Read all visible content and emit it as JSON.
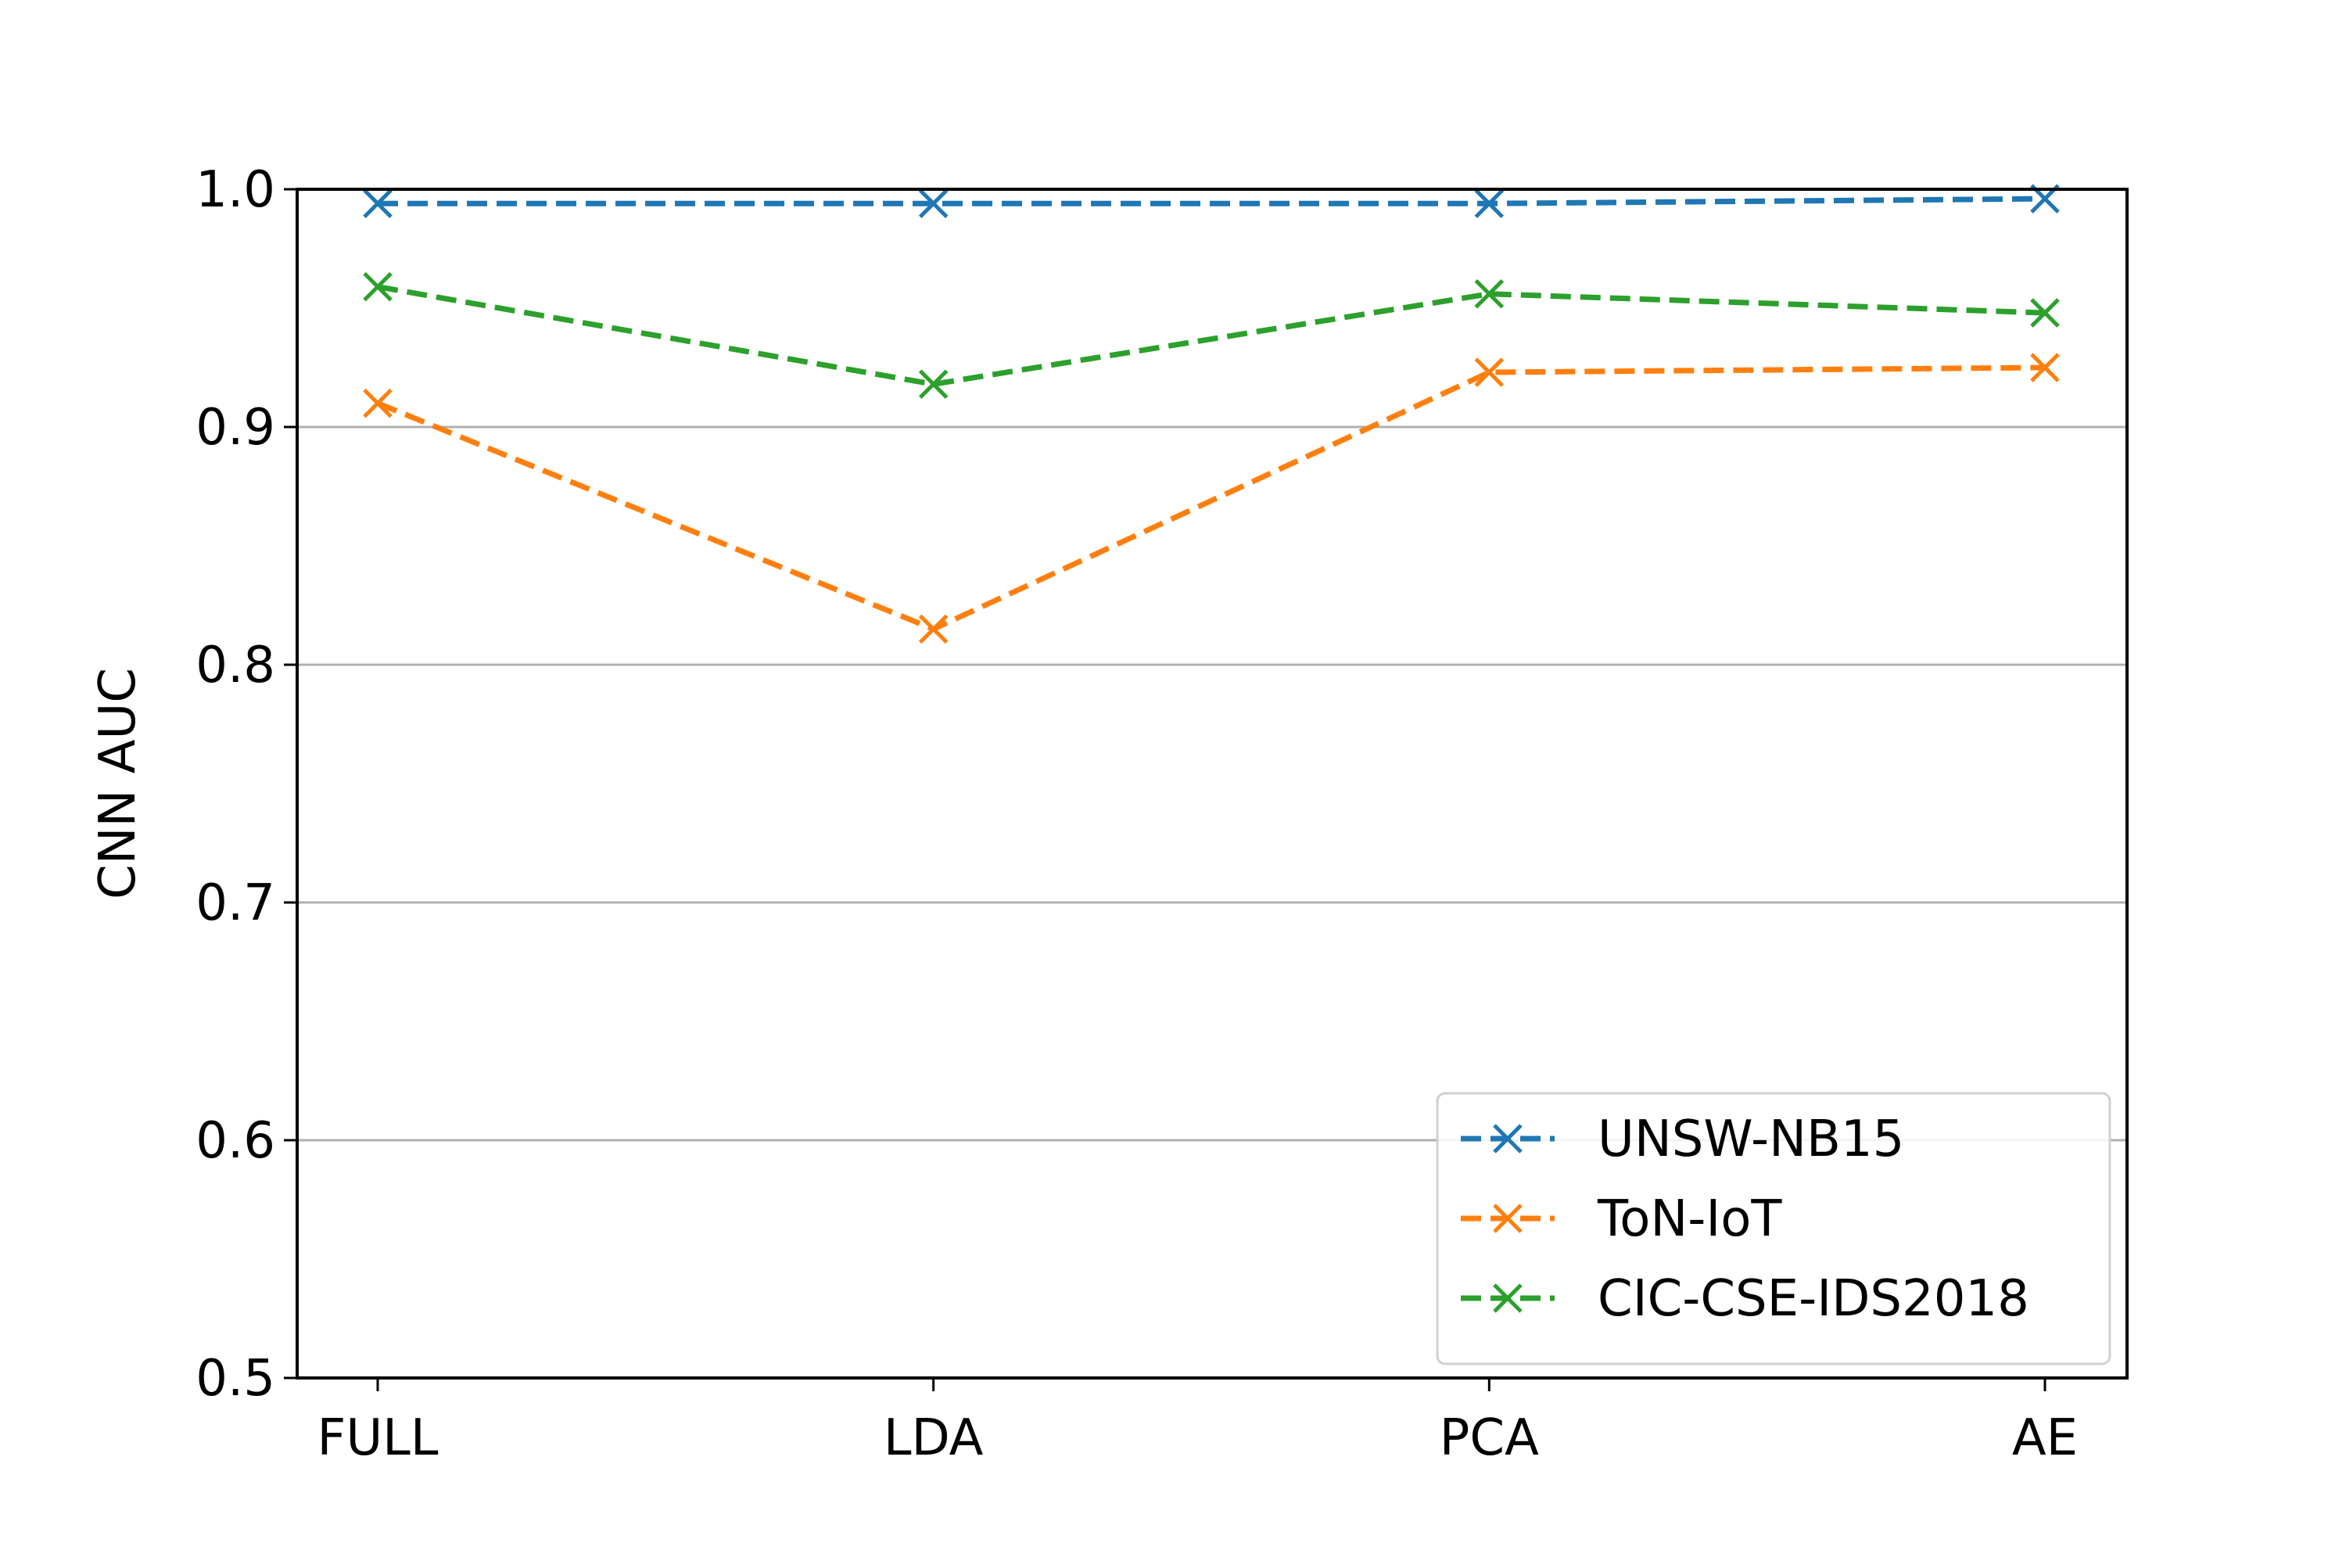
{
  "chart_data": {
    "type": "line",
    "title": "",
    "xlabel": "",
    "ylabel": "CNN AUC",
    "categories": [
      "FULL",
      "LDA",
      "PCA",
      "AE"
    ],
    "ylim": [
      0.5,
      1.0
    ],
    "yticks": [
      "0.5",
      "0.6",
      "0.7",
      "0.8",
      "0.9",
      "1.0"
    ],
    "grid": "horizontal",
    "legend_position": "lower-right",
    "line_style": "dashed",
    "marker": "x",
    "series": [
      {
        "name": "UNSW-NB15",
        "color": "#1f77b4",
        "values": [
          0.994,
          0.994,
          0.994,
          0.996
        ]
      },
      {
        "name": "ToN-IoT",
        "color": "#ff7f0e",
        "values": [
          0.91,
          0.815,
          0.923,
          0.925
        ]
      },
      {
        "name": "CIC-CSE-IDS2018",
        "color": "#2ca02c",
        "values": [
          0.959,
          0.918,
          0.956,
          0.948
        ]
      }
    ]
  }
}
